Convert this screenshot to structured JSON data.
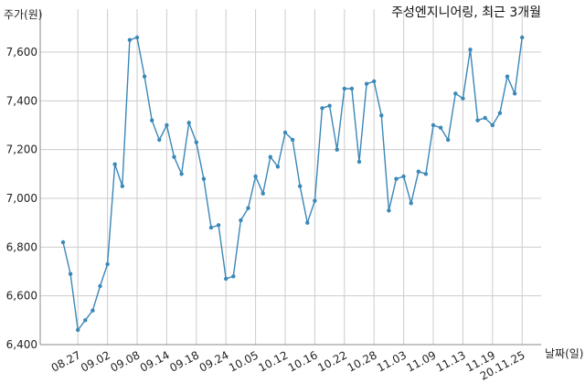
{
  "chart_data": {
    "type": "line",
    "title": "주성엔지니어링, 최근 3개월",
    "xlabel": "날짜(일)",
    "ylabel": "주가(원)",
    "ylim": [
      6400,
      7700
    ],
    "yticks": [
      6400,
      6600,
      6800,
      7000,
      7200,
      7400,
      7600
    ],
    "ytick_labels": [
      "6,400",
      "6,600",
      "6,800",
      "7,000",
      "7,200",
      "7,400",
      "7,600"
    ],
    "xtick_labels": [
      "08.27",
      "09.02",
      "09.08",
      "09.14",
      "09.18",
      "09.24",
      "10.05",
      "10.12",
      "10.16",
      "10.22",
      "10.28",
      "11.03",
      "11.09",
      "11.13",
      "11.19",
      "20.11.25"
    ],
    "xtick_index": [
      2,
      6,
      10,
      14,
      18,
      22,
      26,
      30,
      34,
      38,
      42,
      46,
      50,
      54,
      58,
      62
    ],
    "grid": true,
    "color": "#3a87b8",
    "series": [
      {
        "values": [
          6820,
          6690,
          6460,
          6500,
          6540,
          6640,
          6730,
          7140,
          7050,
          7650,
          7660,
          7500,
          7320,
          7240,
          7300,
          7170,
          7100,
          7310,
          7230,
          7080,
          6880,
          6890,
          6670,
          6680,
          6910,
          6960,
          7090,
          7020,
          7170,
          7130,
          7270,
          7240,
          7050,
          6900,
          6990,
          7370,
          7380,
          7200,
          7450,
          7450,
          7150,
          7470,
          7480,
          7340,
          6950,
          7080,
          7090,
          6980,
          7110,
          7100,
          7300,
          7290,
          7240,
          7430,
          7410,
          7610,
          7320,
          7330,
          7300,
          7350,
          7500,
          7430,
          7660
        ]
      }
    ]
  }
}
